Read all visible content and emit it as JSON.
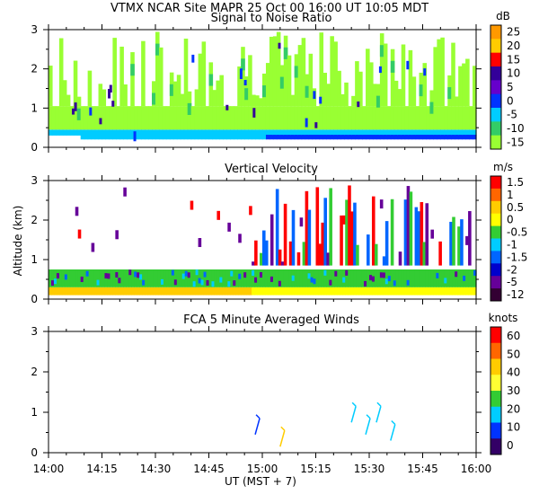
{
  "header": {
    "line1": "VTMX   NCAR Site   MAPR 25 Oct 00   16:00 UT   10:05   MDT"
  },
  "axes": {
    "xlabel": "UT   (MST + 7)",
    "ylabel": "Altitude (km)",
    "x_ticks": [
      "14:00",
      "14:15",
      "14:30",
      "14:45",
      "15:00",
      "15:15",
      "15:30",
      "15:45",
      "16:00"
    ],
    "y_ticks": [
      "0",
      "1",
      "2",
      "3"
    ]
  },
  "chart_data": [
    {
      "type": "heatmap",
      "title": "Signal to Noise Ratio",
      "units": "dB",
      "xlabel": "UT (MST + 7)",
      "ylabel": "Altitude (km)",
      "xlim": [
        "14:00",
        "16:00"
      ],
      "ylim": [
        0,
        3
      ],
      "colorbar_labels": [
        "25",
        "20",
        "15",
        "10",
        "5",
        "0",
        "-5",
        "-10",
        "-15"
      ],
      "colorbar_colors": [
        "#ff9900",
        "#ffcc00",
        "#ff0000",
        "#330099",
        "#6600cc",
        "#0033ff",
        "#00ccff",
        "#33cc66",
        "#99ff33"
      ]
    },
    {
      "type": "heatmap",
      "title": "Vertical Velocity",
      "units": "m/s",
      "xlabel": "UT (MST + 7)",
      "ylabel": "Altitude (km)",
      "xlim": [
        "14:00",
        "16:00"
      ],
      "ylim": [
        0,
        3
      ],
      "colorbar_labels": [
        "1.5",
        "1",
        "0.5",
        "0",
        "-0.5",
        "-1",
        "-1.5",
        "-2",
        "-5",
        "-12"
      ],
      "colorbar_colors": [
        "#ff0000",
        "#ff6600",
        "#ffcc00",
        "#ffff00",
        "#33cc33",
        "#00ccff",
        "#0066ff",
        "#0000cc",
        "#660099",
        "#330033"
      ]
    },
    {
      "type": "scatter",
      "title": "FCA 5 Minute Averaged Winds",
      "units": "knots",
      "xlabel": "UT (MST + 7)",
      "ylabel": "Altitude (km)",
      "xlim": [
        "14:00",
        "16:00"
      ],
      "ylim": [
        0,
        3
      ],
      "colorbar_labels": [
        "60",
        "50",
        "40",
        "30",
        "20",
        "10",
        "0"
      ],
      "colorbar_colors": [
        "#ff0000",
        "#ff6600",
        "#ffcc00",
        "#ffff33",
        "#33cc33",
        "#00ccff",
        "#0033ff",
        "#330066"
      ],
      "barbs": [
        {
          "time": "14:58",
          "alt": 0.45,
          "color": "#0033ff"
        },
        {
          "time": "15:05",
          "alt": 0.15,
          "color": "#ffcc00"
        },
        {
          "time": "15:25",
          "alt": 0.75,
          "color": "#00ccff"
        },
        {
          "time": "15:29",
          "alt": 0.45,
          "color": "#00ccff"
        },
        {
          "time": "15:32",
          "alt": 0.75,
          "color": "#00ccff"
        },
        {
          "time": "15:36",
          "alt": 0.3,
          "color": "#00ccff"
        }
      ]
    }
  ]
}
